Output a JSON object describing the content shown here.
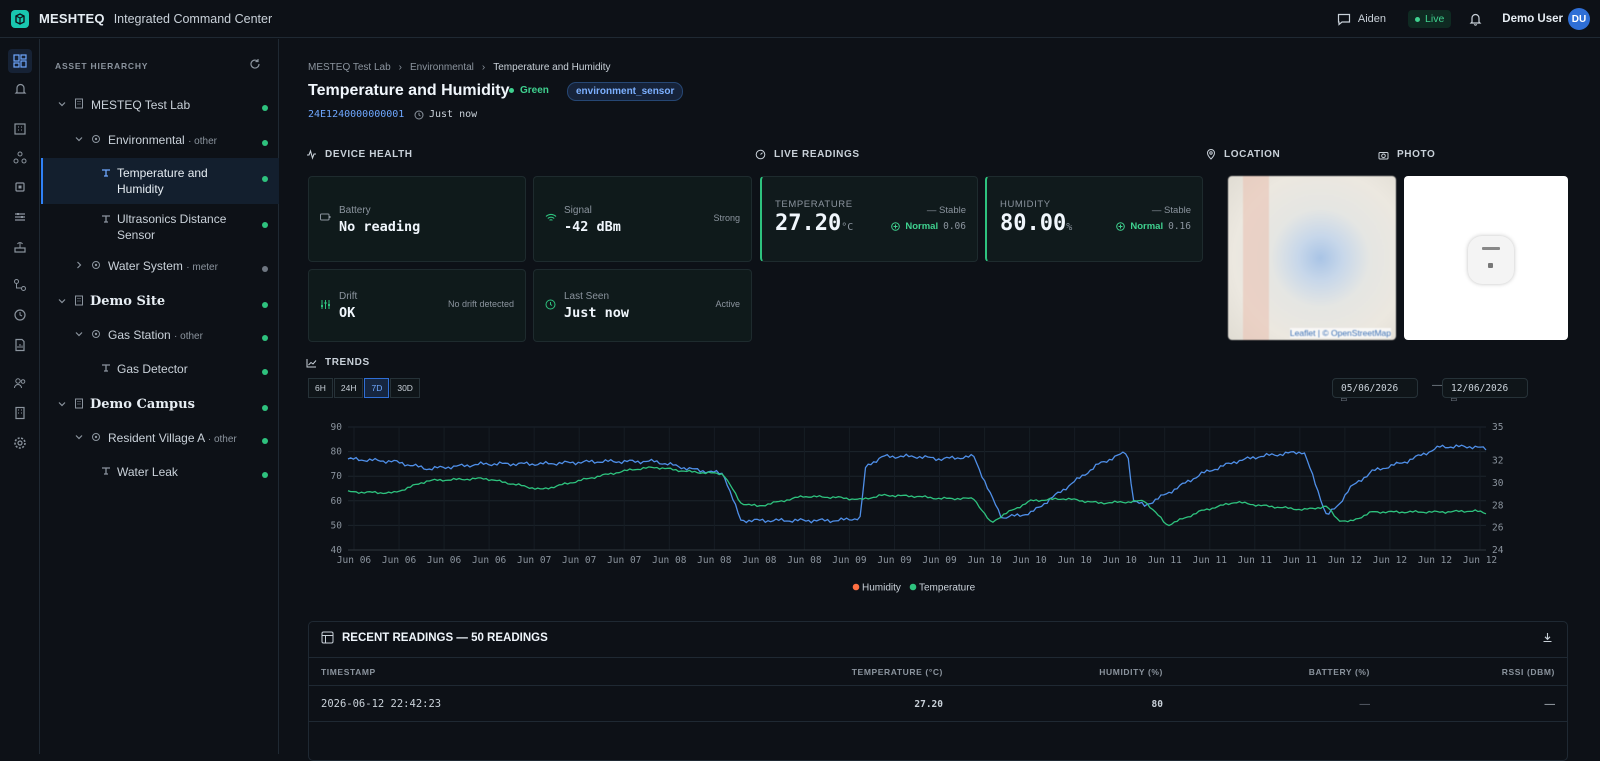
{
  "app": {
    "brand": "MESHTEQ",
    "subtitle": "Integrated Command Center"
  },
  "topbar": {
    "chat_label": "Aiden",
    "live_label": "Live",
    "user_name": "Demo User",
    "user_initials": "DU"
  },
  "tree": {
    "heading": "ASSET HIERARCHY",
    "nodes": [
      {
        "label": "MESTEQ Test Lab",
        "kind": ""
      },
      {
        "label": "Environmental",
        "kind": "· other"
      },
      {
        "label": "Temperature and",
        "label2": "Humidity",
        "kind": ""
      },
      {
        "label": "Ultrasonics Distance",
        "label2": "Sensor",
        "kind": ""
      },
      {
        "label": "Water System",
        "kind": "· meter"
      },
      {
        "label": "Demo Site",
        "kind": ""
      },
      {
        "label": "Gas Station",
        "kind": "· other"
      },
      {
        "label": "Gas Detector",
        "kind": ""
      },
      {
        "label": "Demo Campus",
        "kind": ""
      },
      {
        "label": "Resident Village A",
        "kind": "· other"
      },
      {
        "label": "Water Leak",
        "kind": ""
      }
    ]
  },
  "breadcrumb": [
    "MESTEQ Test Lab",
    "Environmental",
    "Temperature and Humidity"
  ],
  "device": {
    "title": "Temperature and Humidity",
    "status": "Green",
    "type_badge": "environment_sensor",
    "id": "24E1240000000001",
    "seen": "Just now"
  },
  "sections": {
    "health": "DEVICE HEALTH",
    "live": "LIVE READINGS",
    "location": "LOCATION",
    "photo": "PHOTO",
    "trends": "TRENDS"
  },
  "health": {
    "battery": {
      "label": "Battery",
      "value": "No reading",
      "note": ""
    },
    "signal": {
      "label": "Signal",
      "value": "-42 dBm",
      "note": "Strong"
    },
    "drift": {
      "label": "Drift",
      "value": "OK",
      "note": "No drift detected"
    },
    "last_seen": {
      "label": "Last Seen",
      "value": "Just now",
      "note": "Active"
    }
  },
  "live": {
    "temperature": {
      "label": "TEMPERATURE",
      "value": "27.20",
      "unit": "°C",
      "trend": "— Stable",
      "status": "Normal",
      "deviation": "0.06"
    },
    "humidity": {
      "label": "HUMIDITY",
      "value": "80.00",
      "unit": "%",
      "trend": "— Stable",
      "status": "Normal",
      "deviation": "0.16"
    }
  },
  "map": {
    "attribution": "Leaflet | © OpenStreetMap"
  },
  "trends": {
    "ranges": [
      "6H",
      "24H",
      "7D",
      "30D"
    ],
    "active_range": "7D",
    "date_from": "05/06/2026",
    "date_to": "12/06/2026",
    "date_separator": "—"
  },
  "chart_data": {
    "type": "line",
    "x_tick_labels": [
      "Jun 06",
      "Jun 06",
      "Jun 06",
      "Jun 06",
      "Jun 07",
      "Jun 07",
      "Jun 07",
      "Jun 08",
      "Jun 08",
      "Jun 08",
      "Jun 08",
      "Jun 09",
      "Jun 09",
      "Jun 09",
      "Jun 10",
      "Jun 10",
      "Jun 10",
      "Jun 10",
      "Jun 11",
      "Jun 11",
      "Jun 11",
      "Jun 11",
      "Jun 12",
      "Jun 12",
      "Jun 12",
      "Jun 12"
    ],
    "y_left": {
      "ticks": [
        40,
        50,
        60,
        70,
        80,
        90
      ],
      "lim": [
        40,
        90
      ]
    },
    "y_right": {
      "ticks": [
        24,
        26,
        28,
        30,
        32,
        35
      ],
      "lim": [
        24,
        35
      ]
    },
    "grid": true,
    "legend": [
      "Humidity",
      "Temperature"
    ],
    "legend_position": "bottom",
    "series": [
      {
        "name": "Humidity",
        "axis": "left",
        "color": "#4f8fe8",
        "x": [
          0,
          0.04,
          0.07,
          0.12,
          0.17,
          0.22,
          0.27,
          0.3,
          0.33,
          0.345,
          0.36,
          0.4,
          0.43,
          0.45,
          0.455,
          0.47,
          0.5,
          0.52,
          0.55,
          0.565,
          0.575,
          0.6,
          0.63,
          0.66,
          0.685,
          0.69,
          0.7,
          0.72,
          0.75,
          0.78,
          0.8,
          0.84,
          0.86,
          0.87,
          0.88,
          0.9,
          0.93,
          0.96,
          0.99,
          1.0
        ],
        "y": [
          77,
          76,
          73,
          75,
          75,
          76,
          76,
          73,
          71,
          52,
          52,
          52,
          52,
          53,
          74,
          78,
          78,
          77,
          78,
          62,
          53,
          55,
          65,
          75,
          80,
          60,
          58,
          63,
          71,
          76,
          78,
          80,
          54,
          58,
          65,
          72,
          76,
          82,
          82,
          81
        ]
      },
      {
        "name": "Temperature",
        "axis": "right",
        "color": "#2ec27e",
        "x": [
          0,
          0.04,
          0.07,
          0.12,
          0.17,
          0.22,
          0.25,
          0.27,
          0.3,
          0.33,
          0.345,
          0.36,
          0.4,
          0.43,
          0.45,
          0.47,
          0.5,
          0.52,
          0.55,
          0.565,
          0.575,
          0.6,
          0.63,
          0.66,
          0.685,
          0.7,
          0.72,
          0.75,
          0.78,
          0.8,
          0.84,
          0.86,
          0.87,
          0.88,
          0.9,
          0.93,
          0.96,
          0.99,
          1.0
        ],
        "y": [
          29.2,
          29.1,
          30.2,
          30.4,
          29.4,
          30.6,
          31.2,
          31.4,
          31.0,
          30.8,
          28.2,
          27.9,
          28.8,
          28.7,
          28.5,
          28.9,
          28.8,
          28.6,
          28.6,
          26.4,
          27.1,
          28.4,
          28.6,
          28.2,
          28.3,
          28.4,
          26.2,
          27.5,
          28.3,
          28.0,
          27.6,
          27.9,
          26.7,
          26.5,
          27.4,
          27.4,
          27.4,
          27.5,
          27.3
        ]
      }
    ]
  },
  "table": {
    "title": "RECENT READINGS — 50 READINGS",
    "columns": [
      "TIMESTAMP",
      "TEMPERATURE (°C)",
      "HUMIDITY (%)",
      "BATTERY (%)",
      "RSSI (DBM)"
    ],
    "rows": [
      {
        "timestamp": "2026-06-12 22:42:23",
        "temperature": "27.20",
        "humidity": "80",
        "battery": "—",
        "rssi": "—"
      }
    ]
  }
}
